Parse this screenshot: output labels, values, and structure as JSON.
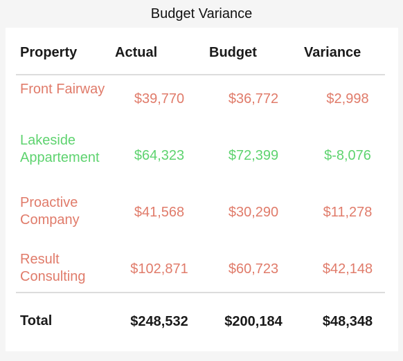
{
  "title": "Budget Variance",
  "colors": {
    "positive": "#e07b6a",
    "negative": "#5ed36f",
    "text": "#1a1a1a"
  },
  "chart_data": {
    "type": "table",
    "title": "Budget Variance",
    "columns": [
      "Property",
      "Actual",
      "Budget",
      "Variance"
    ],
    "rows": [
      {
        "property": "Front Fairway",
        "actual": "$39,770",
        "budget": "$36,772",
        "variance": "$2,998",
        "status": "positive"
      },
      {
        "property": "Lakeside Appartement",
        "actual": "$64,323",
        "budget": "$72,399",
        "variance": "$-8,076",
        "status": "negative"
      },
      {
        "property": "Proactive Company",
        "actual": "$41,568",
        "budget": "$30,290",
        "variance": "$11,278",
        "status": "positive"
      },
      {
        "property": "Result Consulting",
        "actual": "$102,871",
        "budget": "$60,723",
        "variance": "$42,148",
        "status": "positive"
      }
    ],
    "total": {
      "label": "Total",
      "actual": "$248,532",
      "budget": "$200,184",
      "variance": "$48,348"
    }
  }
}
